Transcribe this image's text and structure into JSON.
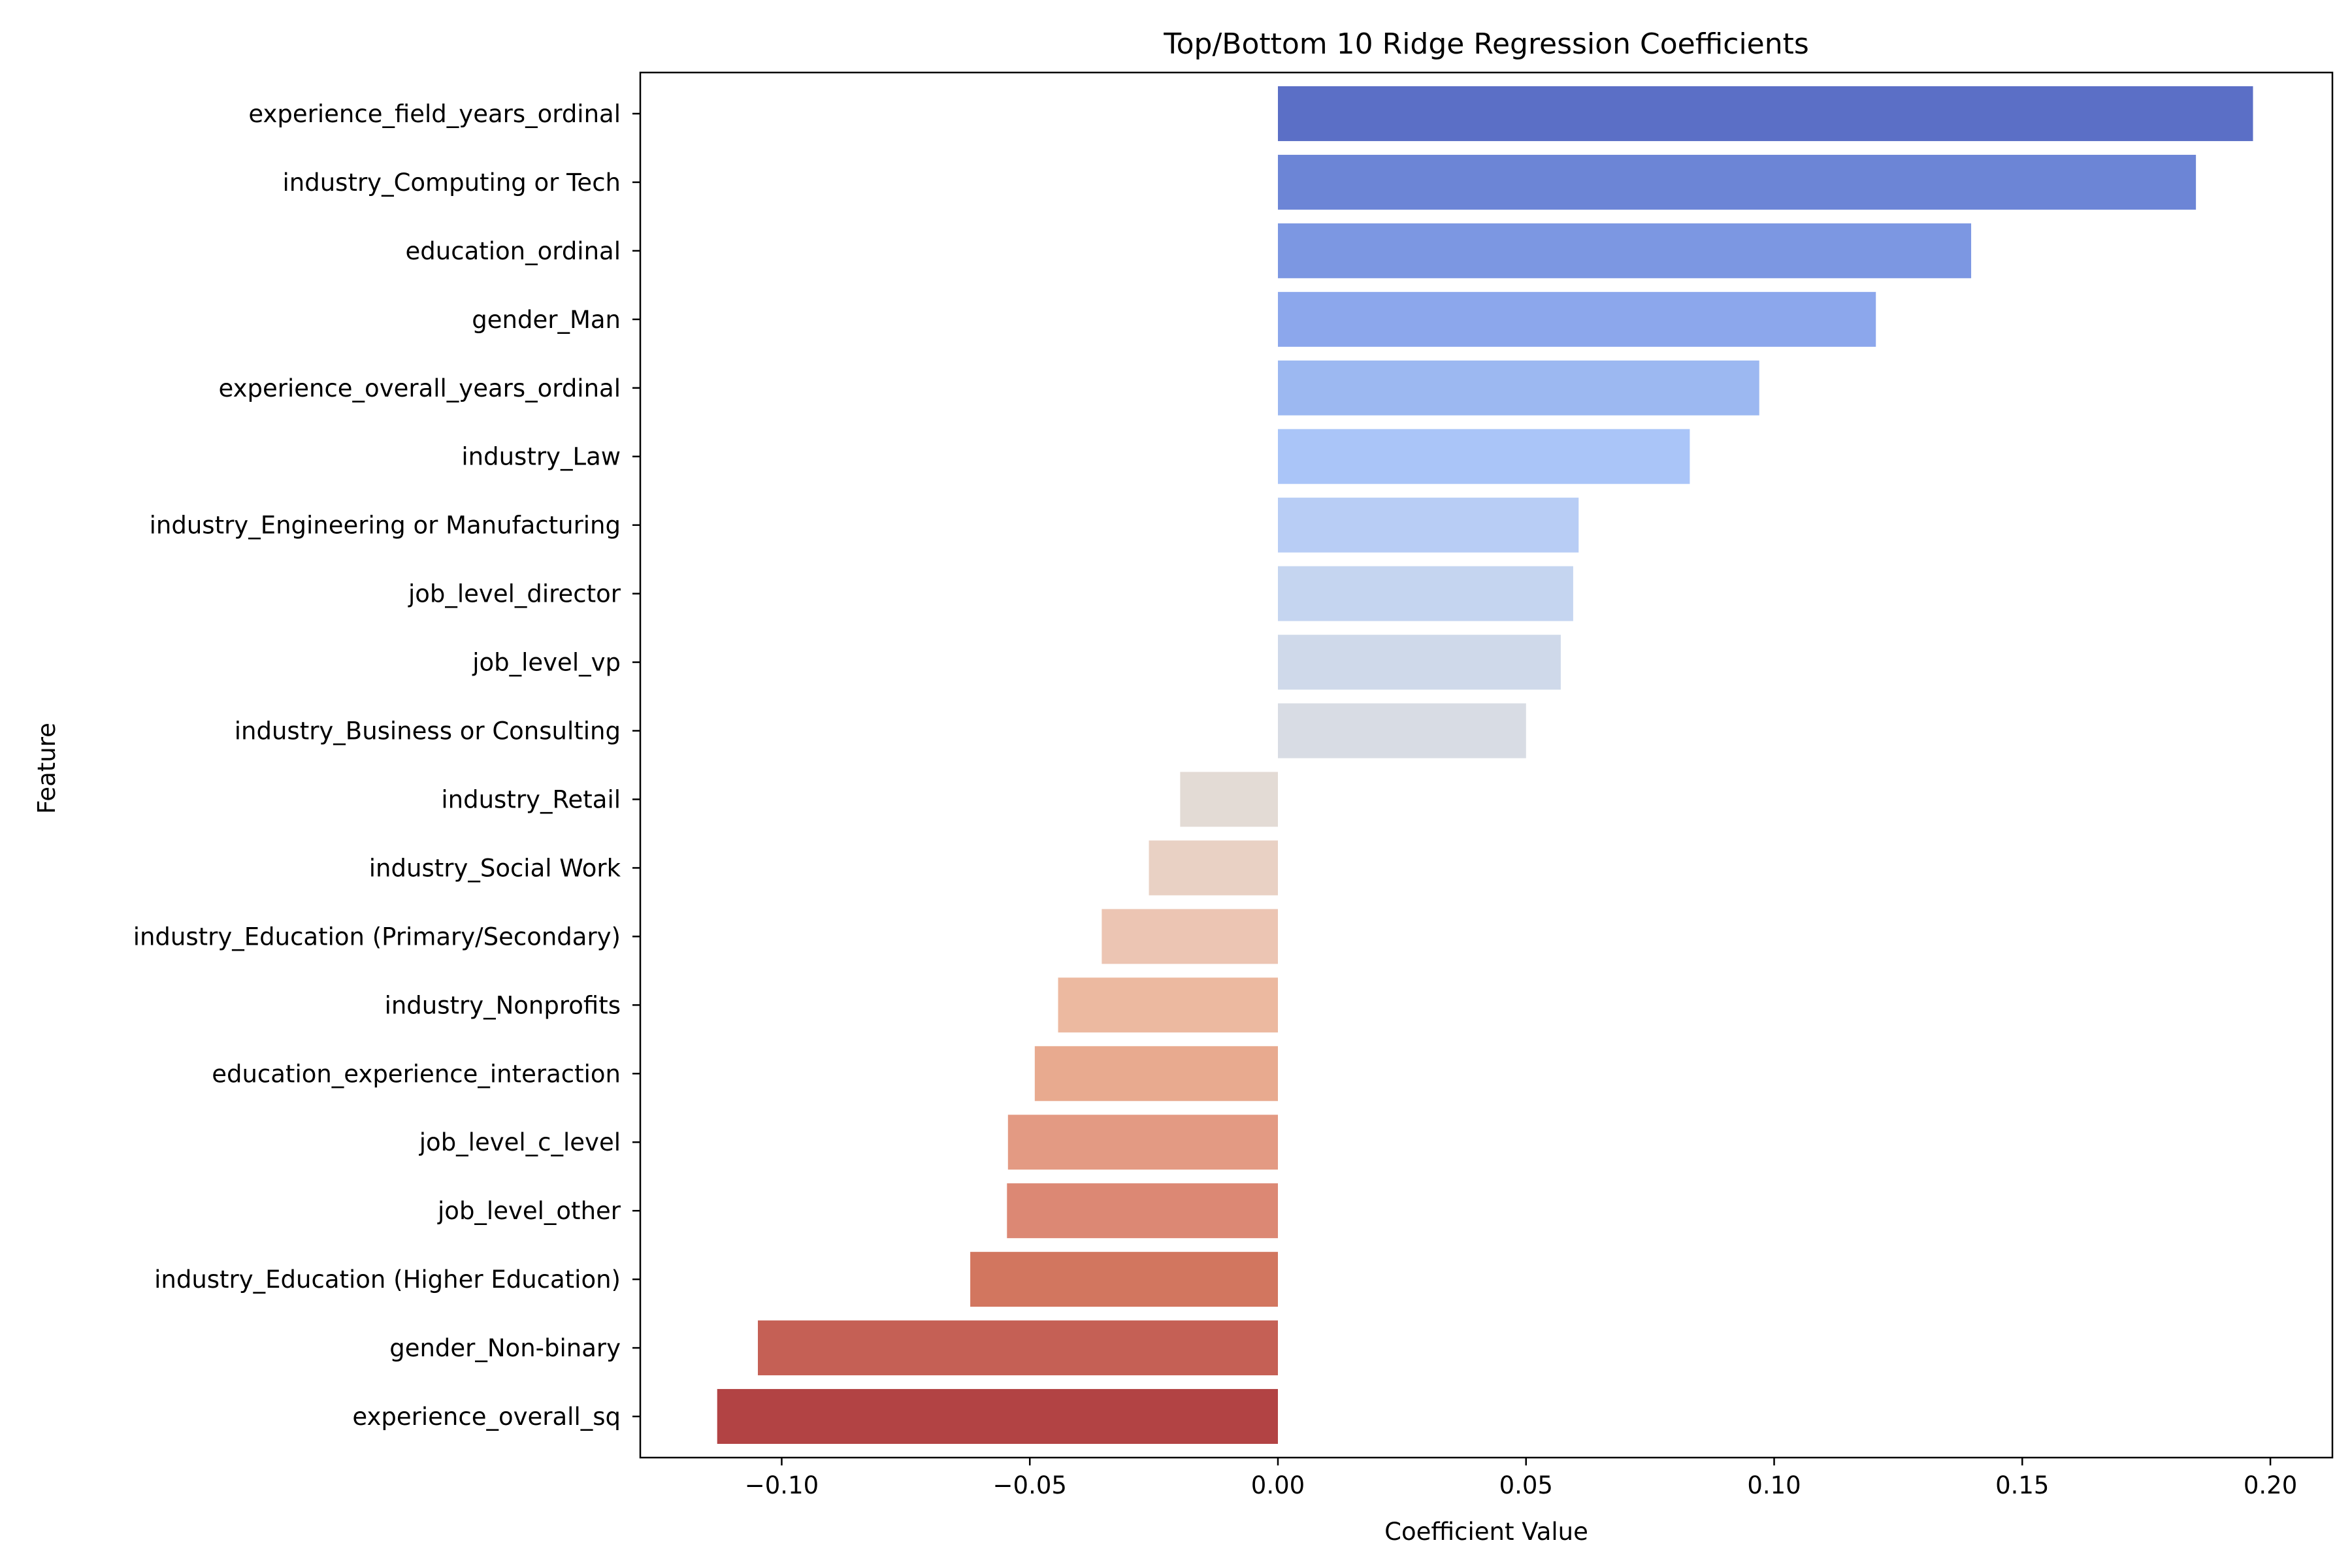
{
  "chart_data": {
    "type": "bar",
    "orientation": "horizontal",
    "title": "Top/Bottom 10 Ridge Regression Coefficients",
    "xlabel": "Coefficient Value",
    "ylabel": "Feature",
    "xlim": [
      -0.1285,
      0.2125
    ],
    "x_ticks": [
      -0.1,
      -0.05,
      0.0,
      0.05,
      0.1,
      0.15,
      0.2
    ],
    "x_tick_labels": [
      "−0.10",
      "−0.05",
      "0.00",
      "0.05",
      "0.10",
      "0.15",
      "0.20"
    ],
    "grid": false,
    "legend": "none",
    "categories": [
      "experience_field_years_ordinal",
      "industry_Computing or Tech",
      "education_ordinal",
      "gender_Man",
      "experience_overall_years_ordinal",
      "industry_Law",
      "industry_Engineering or Manufacturing",
      "job_level_director",
      "job_level_vp",
      "industry_Business or Consulting",
      "industry_Retail",
      "industry_Social Work",
      "industry_Education (Primary/Secondary)",
      "industry_Nonprofits",
      "education_experience_interaction",
      "job_level_c_level",
      "job_level_other",
      "industry_Education (Higher Education)",
      "gender_Non-binary",
      "experience_overall_sq"
    ],
    "values": [
      0.1965,
      0.185,
      0.1397,
      0.1205,
      0.097,
      0.083,
      0.0606,
      0.0595,
      0.057,
      0.05,
      -0.0197,
      -0.026,
      -0.0355,
      -0.0443,
      -0.049,
      -0.0544,
      -0.0546,
      -0.062,
      -0.1048,
      -0.113
    ],
    "colors": [
      "#5b6fc6",
      "#6c85d6",
      "#7c97e2",
      "#8ca7ec",
      "#9cb8f1",
      "#aac5f8",
      "#b8cdf5",
      "#c5d5f0",
      "#cfd9ea",
      "#d8dce4",
      "#e3dbd5",
      "#e9d1c4",
      "#ecc5b3",
      "#ecb9a0",
      "#e8aa8f",
      "#e39a83",
      "#dc8874",
      "#d2765f",
      "#c56055",
      "#b24344"
    ]
  }
}
